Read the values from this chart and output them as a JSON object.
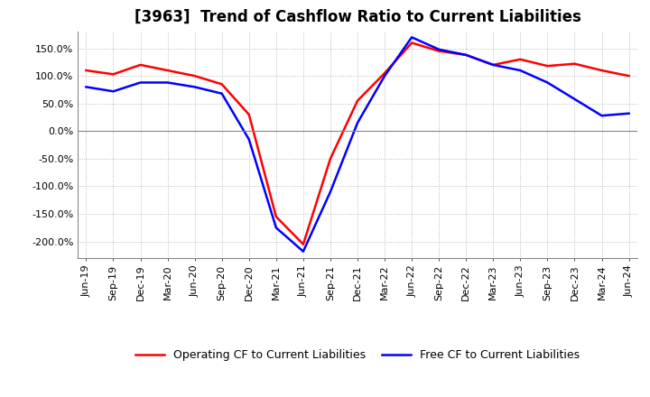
{
  "title": "[3963]  Trend of Cashflow Ratio to Current Liabilities",
  "ylim": [
    -230,
    180
  ],
  "yticks": [
    -200,
    -150,
    -100,
    -50,
    0,
    50,
    100,
    150
  ],
  "ytick_labels": [
    "-200.0%",
    "-150.0%",
    "-100.0%",
    "-50.0%",
    "0.0%",
    "50.0%",
    "100.0%",
    "150.0%"
  ],
  "x_labels": [
    "Jun-19",
    "Sep-19",
    "Dec-19",
    "Mar-20",
    "Jun-20",
    "Sep-20",
    "Dec-20",
    "Mar-21",
    "Jun-21",
    "Sep-21",
    "Dec-21",
    "Mar-22",
    "Jun-22",
    "Sep-22",
    "Dec-22",
    "Mar-23",
    "Jun-23",
    "Sep-23",
    "Dec-23",
    "Mar-24",
    "Jun-24"
  ],
  "operating_cf": [
    110,
    103,
    120,
    110,
    100,
    85,
    30,
    -155,
    -205,
    -50,
    55,
    105,
    160,
    145,
    138,
    120,
    130,
    118,
    122,
    110,
    100
  ],
  "free_cf": [
    80,
    72,
    88,
    88,
    80,
    68,
    -15,
    -175,
    -218,
    -110,
    15,
    100,
    170,
    148,
    138,
    120,
    110,
    88,
    58,
    28,
    32
  ],
  "operating_color": "#ff0000",
  "free_color": "#0000ff",
  "background_color": "#ffffff",
  "grid_color": "#aaaaaa",
  "legend_operating": "Operating CF to Current Liabilities",
  "legend_free": "Free CF to Current Liabilities",
  "title_fontsize": 12,
  "tick_fontsize": 8,
  "legend_fontsize": 9
}
